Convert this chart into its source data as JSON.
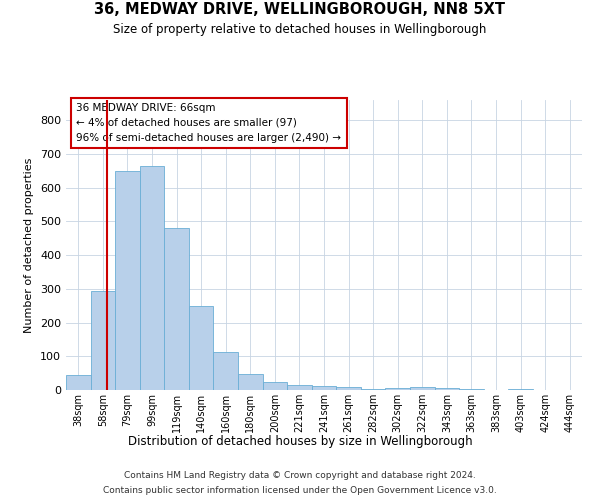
{
  "title": "36, MEDWAY DRIVE, WELLINGBOROUGH, NN8 5XT",
  "subtitle": "Size of property relative to detached houses in Wellingborough",
  "xlabel": "Distribution of detached houses by size in Wellingborough",
  "ylabel": "Number of detached properties",
  "footer_line1": "Contains HM Land Registry data © Crown copyright and database right 2024.",
  "footer_line2": "Contains public sector information licensed under the Open Government Licence v3.0.",
  "annotation_title": "36 MEDWAY DRIVE: 66sqm",
  "annotation_line1": "← 4% of detached houses are smaller (97)",
  "annotation_line2": "96% of semi-detached houses are larger (2,490) →",
  "property_size": 66,
  "bar_color": "#b8d0ea",
  "bar_edge_color": "#6aaed6",
  "redline_color": "#cc0000",
  "background_color": "#ffffff",
  "grid_color": "#c8d4e3",
  "categories": [
    "38sqm",
    "58sqm",
    "79sqm",
    "99sqm",
    "119sqm",
    "140sqm",
    "160sqm",
    "180sqm",
    "200sqm",
    "221sqm",
    "241sqm",
    "261sqm",
    "282sqm",
    "302sqm",
    "322sqm",
    "343sqm",
    "363sqm",
    "383sqm",
    "403sqm",
    "424sqm",
    "444sqm"
  ],
  "values": [
    45,
    295,
    650,
    665,
    480,
    250,
    113,
    48,
    25,
    14,
    13,
    8,
    2,
    7,
    9,
    5,
    4,
    1,
    4,
    1,
    0
  ],
  "ylim": [
    0,
    860
  ],
  "yticks": [
    0,
    100,
    200,
    300,
    400,
    500,
    600,
    700,
    800
  ],
  "bar_width": 1.0,
  "redline_x": 1.18
}
